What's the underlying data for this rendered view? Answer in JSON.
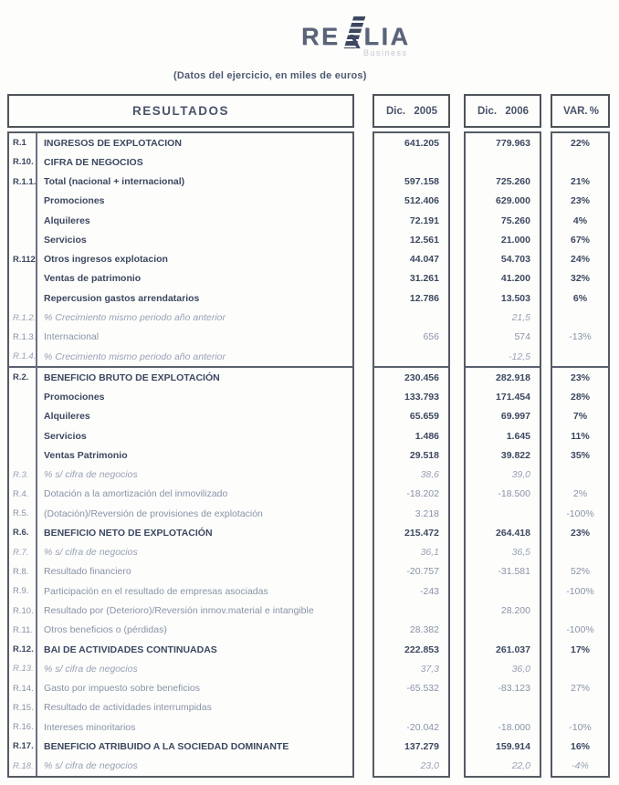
{
  "logo": {
    "left": "RE",
    "right": "LIA",
    "icon": "realia-ladder-icon",
    "business": "Business"
  },
  "subtitle": "(Datos del ejercicio, en miles de euros)",
  "footnote_mark": "*",
  "colors": {
    "text_dark": "#3c485f",
    "text_light": "#8893a6",
    "text_italic": "#97a1b4",
    "border": "#565b62",
    "logo": "#3d4760"
  },
  "table": {
    "headers": {
      "results": "RESULTADOS",
      "col2005_label": "Dic.",
      "col2005_year": "2005",
      "col2006_label": "Dic.",
      "col2006_year": "2006",
      "var_label": "VAR.",
      "var_pct": "%"
    },
    "rows": [
      {
        "code": "R.1",
        "desc": "INGRESOS DE EXPLOTACION",
        "y2005": "641.205",
        "y2006": "779.963",
        "var": "22%",
        "style": "bold",
        "sep": false
      },
      {
        "code": "R.10.",
        "desc": "CIFRA DE NEGOCIOS",
        "y2005": "",
        "y2006": "",
        "var": "",
        "style": "bold",
        "sep": false
      },
      {
        "code": "R.1.1.",
        "desc": "Total (nacional + internacional)",
        "y2005": "597.158",
        "y2006": "725.260",
        "var": "21%",
        "style": "bold",
        "sep": false
      },
      {
        "code": "",
        "desc": "Promociones",
        "y2005": "512.406",
        "y2006": "629.000",
        "var": "23%",
        "style": "bold",
        "sep": false
      },
      {
        "code": "",
        "desc": "Alquileres",
        "y2005": "72.191",
        "y2006": "75.260",
        "var": "4%",
        "style": "bold",
        "sep": false
      },
      {
        "code": "",
        "desc": "Servicios",
        "y2005": "12.561",
        "y2006": "21.000",
        "var": "67%",
        "style": "bold",
        "sep": false
      },
      {
        "code": "R.112",
        "desc": "Otros ingresos explotacion",
        "y2005": "44.047",
        "y2006": "54.703",
        "var": "24%",
        "style": "bold",
        "sep": false
      },
      {
        "code": "",
        "desc": "Ventas de patrimonio",
        "y2005": "31.261",
        "y2006": "41.200",
        "var": "32%",
        "style": "bold",
        "sep": false
      },
      {
        "code": "",
        "desc": "Repercusion gastos arrendatarios",
        "y2005": "12.786",
        "y2006": "13.503",
        "var": "6%",
        "style": "bold",
        "sep": false
      },
      {
        "code": "R.1.2.",
        "desc": "% Crecimiento mismo periodo año anterior",
        "y2005": "",
        "y2006": "21,5",
        "var": "",
        "style": "italic",
        "sep": false
      },
      {
        "code": "R.1.3.",
        "desc": "Internacional",
        "y2005": "656",
        "y2006": "574",
        "var": "-13%",
        "style": "light",
        "sep": false
      },
      {
        "code": "R.1.4.",
        "desc": "% Crecimiento mismo periodo año anterior",
        "y2005": "",
        "y2006": "-12,5",
        "var": "",
        "style": "italic",
        "sep": false
      },
      {
        "code": "R.2.",
        "desc": "BENEFICIO BRUTO DE EXPLOTACIÓN",
        "y2005": "230.456",
        "y2006": "282.918",
        "var": "23%",
        "style": "bold",
        "sep": true
      },
      {
        "code": "",
        "desc": "Promociones",
        "y2005": "133.793",
        "y2006": "171.454",
        "var": "28%",
        "style": "bold",
        "sep": false
      },
      {
        "code": "",
        "desc": "Alquileres",
        "y2005": "65.659",
        "y2006": "69.997",
        "var": "7%",
        "style": "bold",
        "sep": false
      },
      {
        "code": "",
        "desc": "Servicios",
        "y2005": "1.486",
        "y2006": "1.645",
        "var": "11%",
        "style": "bold",
        "sep": false
      },
      {
        "code": "",
        "desc": "Ventas Patrimonio",
        "y2005": "29.518",
        "y2006": "39.822",
        "var": "35%",
        "style": "bold",
        "sep": false
      },
      {
        "code": "R.3.",
        "desc": "% s/ cifra de negocios",
        "y2005": "38,6",
        "y2006": "39,0",
        "var": "",
        "style": "italic",
        "sep": false
      },
      {
        "code": "R.4.",
        "desc": "Dotación a la amortización del inmovilizado",
        "y2005": "-18.202",
        "y2006": "-18.500",
        "var": "2%",
        "style": "light",
        "sep": false
      },
      {
        "code": "R.5.",
        "desc": "(Dotación)/Reversión de provisiones de explotación",
        "y2005": "3.218",
        "y2006": "",
        "var": "-100%",
        "style": "light",
        "sep": false
      },
      {
        "code": "R.6.",
        "desc": "BENEFICIO NETO DE EXPLOTACIÓN",
        "y2005": "215.472",
        "y2006": "264.418",
        "var": "23%",
        "style": "bold",
        "sep": false
      },
      {
        "code": "R.7.",
        "desc": "% s/ cifra de negocios",
        "y2005": "36,1",
        "y2006": "36,5",
        "var": "",
        "style": "italic",
        "sep": false
      },
      {
        "code": "R.8.",
        "desc": "Resultado financiero",
        "y2005": "-20.757",
        "y2006": "-31.581",
        "var": "52%",
        "style": "light",
        "sep": false
      },
      {
        "code": "R.9.",
        "desc": "Participación en el resultado de empresas asociadas",
        "y2005": "-243",
        "y2006": "",
        "var": "-100%",
        "style": "light",
        "sep": false
      },
      {
        "code": "R.10.",
        "desc": "Resultado por (Deterioro)/Reversión inmov.material e intangible",
        "y2005": "",
        "y2006": "28.200",
        "var": "",
        "style": "light",
        "sep": false
      },
      {
        "code": "R.11.",
        "desc": "Otros beneficios o (pérdidas)",
        "y2005": "28.382",
        "y2006": "",
        "var": "-100%",
        "style": "light",
        "sep": false
      },
      {
        "code": "R.12.",
        "desc": "BAI DE ACTIVIDADES CONTINUADAS",
        "y2005": "222.853",
        "y2006": "261.037",
        "var": "17%",
        "style": "bold",
        "sep": false
      },
      {
        "code": "R.13.",
        "desc": "% s/ cifra de negocios",
        "y2005": "37,3",
        "y2006": "36,0",
        "var": "",
        "style": "italic",
        "sep": false
      },
      {
        "code": "R.14.",
        "desc": "Gasto por impuesto sobre beneficios",
        "y2005": "-65.532",
        "y2006": "-83.123",
        "var": "27%",
        "style": "light",
        "sep": false
      },
      {
        "code": "R.15.",
        "desc": "Resultado de actividades interrumpidas",
        "y2005": "",
        "y2006": "",
        "var": "",
        "style": "light",
        "sep": false
      },
      {
        "code": "R.16.",
        "desc": "Intereses minoritarios",
        "y2005": "-20.042",
        "y2006": "-18.000",
        "var": "-10%",
        "style": "light",
        "sep": false
      },
      {
        "code": "R.17.",
        "desc": "BENEFICIO ATRIBUIDO A LA SOCIEDAD DOMINANTE",
        "y2005": "137.279",
        "y2006": "159.914",
        "var": "16%",
        "style": "bold",
        "sep": false
      },
      {
        "code": "R.18.",
        "desc": "% s/ cifra de negocios",
        "y2005": "23,0",
        "y2006": "22,0",
        "var": "-4%",
        "style": "italic",
        "sep": false
      }
    ]
  }
}
